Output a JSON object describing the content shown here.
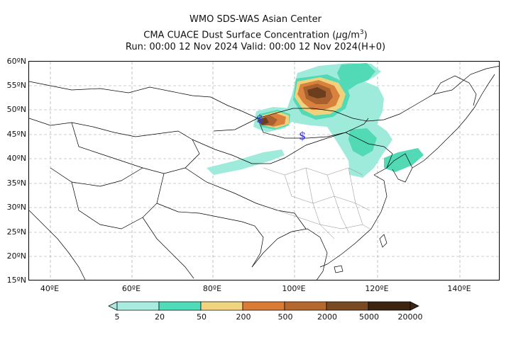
{
  "title": {
    "line1": "WMO SDS-WAS Asian Center",
    "line2": "CMA CUACE Dust Surface Concentration (μg/m³)",
    "line3": "Run: 00:00 12 Nov 2024    Valid: 00:00 12 Nov 2024(H+0)"
  },
  "map": {
    "lat_labels": [
      "60ºN",
      "55ºN",
      "50ºN",
      "45ºN",
      "40ºN",
      "35ºN",
      "30ºN",
      "25ºN",
      "20ºN",
      "15ºN"
    ],
    "lon_labels": [
      "40ºE",
      "60ºE",
      "80ºE",
      "100ºE",
      "120ºE",
      "140ºE"
    ],
    "extent": {
      "lon": [
        35,
        150
      ],
      "lat": [
        15,
        60
      ]
    },
    "grid": true,
    "station_markers": [
      "$",
      "$"
    ]
  },
  "colorbar": {
    "labels": [
      "5",
      "20",
      "50",
      "200",
      "500",
      "2000",
      "5000",
      "20000"
    ],
    "colors": [
      "#a8ece0",
      "#4fdcb8",
      "#f2d480",
      "#d97a35",
      "#b4682e",
      "#7a4a22",
      "#3c2410"
    ]
  },
  "colors": {
    "dust_light": "#9eeadb",
    "dust_mid": "#52d9b6",
    "dust_yellow": "#f0d27c",
    "dust_orange": "#d8823d",
    "dust_brown": "#a8612e",
    "dust_dark": "#6b3f1d",
    "grid": "#9a9a9a"
  }
}
